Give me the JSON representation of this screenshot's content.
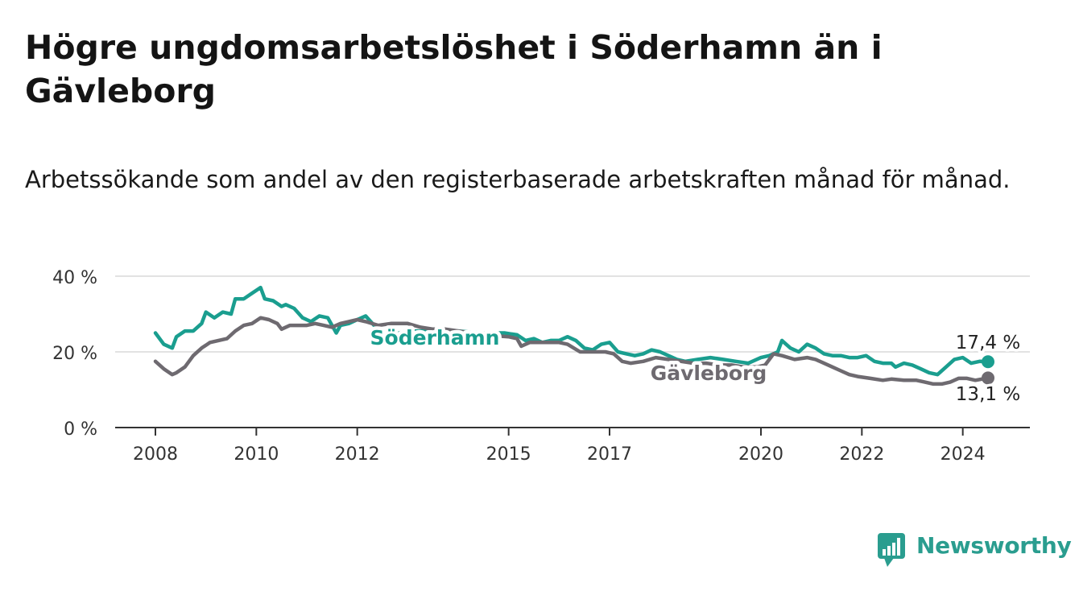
{
  "chart_data": {
    "type": "line",
    "title": "Högre ungdomsarbetslöshet i Söderhamn än i Gävleborg",
    "subtitle": "Arbetssökande som andel av den registerbaserade arbetskraften månad för månad.",
    "xlabel": "",
    "ylabel": "",
    "x_ticks": [
      "2008",
      "2010",
      "2012",
      "2015",
      "2017",
      "2020",
      "2022",
      "2024"
    ],
    "y_ticks": [
      "0 %",
      "20 %",
      "40 %"
    ],
    "xlim": [
      "2008-01",
      "2024-07"
    ],
    "ylim": [
      0,
      40
    ],
    "grid": true,
    "series": [
      {
        "name": "Söderhamn",
        "color": "#1a9e8f",
        "end_label": "17,4 %",
        "points": [
          [
            "2008-01",
            25.0
          ],
          [
            "2008-03",
            22.0
          ],
          [
            "2008-05",
            21.0
          ],
          [
            "2008-06",
            24.0
          ],
          [
            "2008-08",
            25.5
          ],
          [
            "2008-10",
            25.5
          ],
          [
            "2008-12",
            27.5
          ],
          [
            "2009-01",
            30.5
          ],
          [
            "2009-03",
            29.0
          ],
          [
            "2009-05",
            30.5
          ],
          [
            "2009-07",
            30.0
          ],
          [
            "2009-08",
            34.0
          ],
          [
            "2009-10",
            34.0
          ],
          [
            "2009-12",
            35.5
          ],
          [
            "2010-02",
            37.0
          ],
          [
            "2010-03",
            34.0
          ],
          [
            "2010-05",
            33.5
          ],
          [
            "2010-07",
            32.0
          ],
          [
            "2010-08",
            32.5
          ],
          [
            "2010-10",
            31.5
          ],
          [
            "2010-12",
            29.0
          ],
          [
            "2011-02",
            28.0
          ],
          [
            "2011-04",
            29.5
          ],
          [
            "2011-06",
            29.0
          ],
          [
            "2011-08",
            25.0
          ],
          [
            "2011-09",
            27.0
          ],
          [
            "2011-11",
            27.5
          ],
          [
            "2012-01",
            28.5
          ],
          [
            "2012-03",
            29.5
          ],
          [
            "2012-05",
            27.0
          ],
          [
            "2012-07",
            25.5
          ],
          [
            "2012-09",
            24.5
          ],
          [
            "2013-01",
            25.5
          ],
          [
            "2013-06",
            25.5
          ],
          [
            "2014-01",
            25.5
          ],
          [
            "2014-06",
            25.0
          ],
          [
            "2014-12",
            25.0
          ],
          [
            "2015-03",
            24.5
          ],
          [
            "2015-05",
            23.0
          ],
          [
            "2015-07",
            23.5
          ],
          [
            "2015-09",
            22.5
          ],
          [
            "2015-11",
            23.0
          ],
          [
            "2016-01",
            23.0
          ],
          [
            "2016-03",
            24.0
          ],
          [
            "2016-05",
            23.0
          ],
          [
            "2016-07",
            21.0
          ],
          [
            "2016-09",
            20.5
          ],
          [
            "2016-11",
            22.0
          ],
          [
            "2017-01",
            22.5
          ],
          [
            "2017-03",
            20.0
          ],
          [
            "2017-05",
            19.5
          ],
          [
            "2017-07",
            19.0
          ],
          [
            "2017-09",
            19.5
          ],
          [
            "2017-11",
            20.5
          ],
          [
            "2018-01",
            20.0
          ],
          [
            "2018-03",
            19.0
          ],
          [
            "2018-05",
            18.0
          ],
          [
            "2018-07",
            17.5
          ],
          [
            "2018-10",
            18.0
          ],
          [
            "2019-01",
            18.5
          ],
          [
            "2019-04",
            18.0
          ],
          [
            "2019-07",
            17.5
          ],
          [
            "2019-10",
            17.0
          ],
          [
            "2020-01",
            18.5
          ],
          [
            "2020-03",
            19.0
          ],
          [
            "2020-05",
            20.0
          ],
          [
            "2020-06",
            23.0
          ],
          [
            "2020-08",
            21.0
          ],
          [
            "2020-10",
            20.0
          ],
          [
            "2020-12",
            22.0
          ],
          [
            "2021-02",
            21.0
          ],
          [
            "2021-04",
            19.5
          ],
          [
            "2021-06",
            19.0
          ],
          [
            "2021-08",
            19.0
          ],
          [
            "2021-10",
            18.5
          ],
          [
            "2021-12",
            18.5
          ],
          [
            "2022-02",
            19.0
          ],
          [
            "2022-04",
            17.5
          ],
          [
            "2022-06",
            17.0
          ],
          [
            "2022-08",
            17.0
          ],
          [
            "2022-09",
            16.0
          ],
          [
            "2022-11",
            17.0
          ],
          [
            "2023-01",
            16.5
          ],
          [
            "2023-03",
            15.5
          ],
          [
            "2023-05",
            14.5
          ],
          [
            "2023-07",
            14.0
          ],
          [
            "2023-09",
            16.0
          ],
          [
            "2023-11",
            18.0
          ],
          [
            "2024-01",
            18.5
          ],
          [
            "2024-03",
            17.0
          ],
          [
            "2024-05",
            17.5
          ],
          [
            "2024-07",
            17.4
          ]
        ]
      },
      {
        "name": "Gävleborg",
        "color": "#6e6a70",
        "end_label": "13,1 %",
        "points": [
          [
            "2008-01",
            17.5
          ],
          [
            "2008-03",
            15.5
          ],
          [
            "2008-05",
            14.0
          ],
          [
            "2008-06",
            14.5
          ],
          [
            "2008-08",
            16.0
          ],
          [
            "2008-10",
            19.0
          ],
          [
            "2008-12",
            21.0
          ],
          [
            "2009-02",
            22.5
          ],
          [
            "2009-04",
            23.0
          ],
          [
            "2009-06",
            23.5
          ],
          [
            "2009-08",
            25.5
          ],
          [
            "2009-10",
            27.0
          ],
          [
            "2009-12",
            27.5
          ],
          [
            "2010-02",
            29.0
          ],
          [
            "2010-04",
            28.5
          ],
          [
            "2010-06",
            27.5
          ],
          [
            "2010-07",
            26.0
          ],
          [
            "2010-09",
            27.0
          ],
          [
            "2010-11",
            27.0
          ],
          [
            "2011-01",
            27.0
          ],
          [
            "2011-03",
            27.5
          ],
          [
            "2011-05",
            27.0
          ],
          [
            "2011-07",
            26.5
          ],
          [
            "2011-09",
            27.5
          ],
          [
            "2011-11",
            28.0
          ],
          [
            "2012-01",
            28.5
          ],
          [
            "2012-03",
            28.0
          ],
          [
            "2012-06",
            27.0
          ],
          [
            "2012-09",
            27.5
          ],
          [
            "2013-01",
            27.5
          ],
          [
            "2013-04",
            26.5
          ],
          [
            "2013-07",
            26.0
          ],
          [
            "2013-10",
            26.0
          ],
          [
            "2014-01",
            25.5
          ],
          [
            "2014-04",
            25.0
          ],
          [
            "2014-07",
            24.5
          ],
          [
            "2015-01",
            24.0
          ],
          [
            "2015-03",
            23.5
          ],
          [
            "2015-04",
            21.5
          ],
          [
            "2015-06",
            22.5
          ],
          [
            "2015-08",
            22.5
          ],
          [
            "2015-10",
            22.5
          ],
          [
            "2016-01",
            22.5
          ],
          [
            "2016-03",
            22.0
          ],
          [
            "2016-06",
            20.0
          ],
          [
            "2016-09",
            20.0
          ],
          [
            "2016-12",
            20.0
          ],
          [
            "2017-02",
            19.5
          ],
          [
            "2017-04",
            17.5
          ],
          [
            "2017-06",
            17.0
          ],
          [
            "2017-09",
            17.5
          ],
          [
            "2017-12",
            18.5
          ],
          [
            "2018-03",
            18.0
          ],
          [
            "2018-06",
            17.5
          ],
          [
            "2018-09",
            17.0
          ],
          [
            "2018-12",
            17.0
          ],
          [
            "2019-03",
            16.5
          ],
          [
            "2019-06",
            16.5
          ],
          [
            "2019-09",
            16.0
          ],
          [
            "2019-12",
            16.0
          ],
          [
            "2020-02",
            16.5
          ],
          [
            "2020-04",
            19.5
          ],
          [
            "2020-06",
            19.0
          ],
          [
            "2020-09",
            18.0
          ],
          [
            "2020-12",
            18.5
          ],
          [
            "2021-02",
            18.0
          ],
          [
            "2021-04",
            17.0
          ],
          [
            "2021-06",
            16.0
          ],
          [
            "2021-08",
            15.0
          ],
          [
            "2021-10",
            14.0
          ],
          [
            "2021-12",
            13.5
          ],
          [
            "2022-03",
            13.0
          ],
          [
            "2022-06",
            12.5
          ],
          [
            "2022-08",
            12.8
          ],
          [
            "2022-11",
            12.5
          ],
          [
            "2023-02",
            12.5
          ],
          [
            "2023-04",
            12.0
          ],
          [
            "2023-06",
            11.5
          ],
          [
            "2023-08",
            11.5
          ],
          [
            "2023-10",
            12.0
          ],
          [
            "2023-12",
            13.0
          ],
          [
            "2024-02",
            13.0
          ],
          [
            "2024-04",
            12.5
          ],
          [
            "2024-07",
            13.1
          ]
        ]
      }
    ]
  },
  "branding": {
    "name": "Newsworthy",
    "color": "#2a9d8f",
    "icon": "bar-chart-speech-icon"
  }
}
